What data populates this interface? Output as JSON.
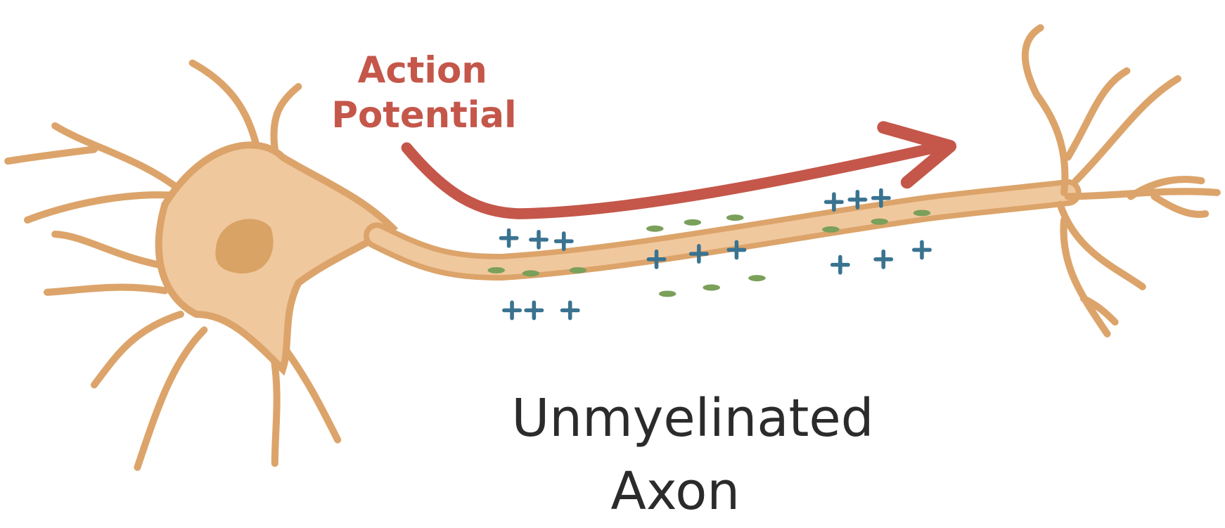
{
  "annotation": {
    "lines": [
      "Action",
      "Potential"
    ]
  },
  "title": {
    "lines": [
      "Unmyelinated",
      "Axon"
    ]
  }
}
